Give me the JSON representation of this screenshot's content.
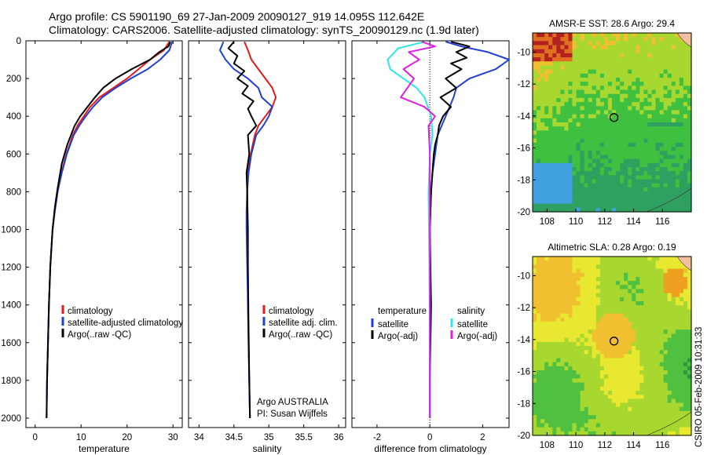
{
  "header": {
    "title": "Argo profile: CS 5901190_69 27-Jan-2009 20090127_919 14.095S 112.642E",
    "subtitle": "Climatology: CARS2006. Satellite-adjusted climatology: synTS_20090129.nc (1.9d later)"
  },
  "colors": {
    "red": "#e41a1c",
    "blue": "#1f3fd6",
    "black": "#000000",
    "cyan": "#2ee6e6",
    "magenta": "#e020e0"
  },
  "depth_axis": {
    "ylim": [
      0,
      2050
    ],
    "ticks": [
      "0",
      "200",
      "400",
      "600",
      "800",
      "1000",
      "1200",
      "1400",
      "1600",
      "1800",
      "2000"
    ]
  },
  "chart_data": [
    {
      "type": "line",
      "xlabel": "temperature",
      "xlim": [
        -2,
        32
      ],
      "xticks": [
        "0",
        "10",
        "20",
        "30"
      ],
      "legend": {
        "placement": "lower-center",
        "items": [
          "climatology",
          "satellite-adjusted climatology",
          "Argo(..raw -QC)"
        ]
      },
      "series": [
        {
          "name": "climatology",
          "color": "red",
          "x": [
            29.2,
            28.0,
            25.0,
            22.5,
            20.0,
            17.0,
            14.0,
            12.0,
            10.6,
            9.2,
            8.2,
            6.8,
            5.7,
            4.9,
            4.3,
            3.8,
            3.3,
            3.0,
            2.8,
            2.6,
            2.5
          ],
          "y": [
            5,
            50,
            100,
            150,
            200,
            250,
            300,
            350,
            400,
            450,
            500,
            600,
            700,
            800,
            900,
            1000,
            1200,
            1400,
            1600,
            1800,
            2000
          ]
        },
        {
          "name": "satellite-adjusted climatology",
          "color": "blue",
          "x": [
            29.8,
            29.2,
            27.2,
            24.5,
            20.8,
            17.5,
            14.6,
            12.6,
            11.0,
            9.6,
            8.4,
            6.9,
            5.8,
            4.9,
            4.3,
            3.8,
            3.3,
            3.0,
            2.8,
            2.6,
            2.5
          ],
          "y": [
            5,
            50,
            100,
            150,
            200,
            250,
            300,
            350,
            400,
            450,
            500,
            600,
            700,
            800,
            900,
            1000,
            1200,
            1400,
            1600,
            1800,
            2000
          ]
        },
        {
          "name": "Argo(..raw -QC)",
          "color": "black",
          "x": [
            29.4,
            29.0,
            27.0,
            25.0,
            21.0,
            17.5,
            14.8,
            13.0,
            11.4,
            9.8,
            8.6,
            7.0,
            5.8,
            4.9,
            4.3,
            3.8,
            3.3,
            3.0,
            2.8,
            2.6,
            2.5
          ],
          "y": [
            5,
            30,
            60,
            100,
            150,
            200,
            250,
            300,
            350,
            400,
            450,
            550,
            650,
            780,
            880,
            1000,
            1200,
            1400,
            1600,
            1800,
            2000
          ]
        }
      ]
    },
    {
      "type": "line",
      "xlabel": "salinity",
      "xlim": [
        33.85,
        36.1
      ],
      "xticks": [
        "34",
        "34.5",
        "35",
        "35.5",
        "36"
      ],
      "legend": {
        "placement": "lower-center",
        "items": [
          "climatology",
          "satellite adj. clim.",
          "Argo(..raw -QC)"
        ]
      },
      "annotations": [
        "Argo AUSTRALIA",
        "PI: Susan Wijffels"
      ],
      "series": [
        {
          "name": "climatology",
          "color": "red",
          "x": [
            34.65,
            34.7,
            34.75,
            34.85,
            34.95,
            35.05,
            35.1,
            35.05,
            34.95,
            34.85,
            34.8,
            34.74,
            34.7,
            34.69,
            34.69,
            34.69,
            34.7,
            34.7,
            34.71,
            34.72,
            34.73
          ],
          "y": [
            5,
            50,
            100,
            150,
            200,
            250,
            300,
            350,
            400,
            450,
            500,
            600,
            700,
            800,
            900,
            1000,
            1200,
            1400,
            1600,
            1800,
            2000
          ]
        },
        {
          "name": "satellite adj. clim.",
          "color": "blue",
          "x": [
            34.35,
            34.3,
            34.38,
            34.5,
            34.7,
            34.85,
            34.9,
            35.05,
            35.0,
            34.92,
            34.82,
            34.75,
            34.71,
            34.69,
            34.68,
            34.68,
            34.69,
            34.7,
            34.71,
            34.72,
            34.73
          ],
          "y": [
            5,
            50,
            100,
            150,
            200,
            250,
            300,
            350,
            400,
            450,
            500,
            600,
            700,
            800,
            900,
            1000,
            1200,
            1400,
            1600,
            1800,
            2000
          ]
        },
        {
          "name": "Argo(..raw -QC)",
          "color": "black",
          "x": [
            34.5,
            34.42,
            34.55,
            34.5,
            34.65,
            34.55,
            34.7,
            34.62,
            34.78,
            34.7,
            34.75,
            34.82,
            34.7,
            34.72,
            34.68,
            34.69,
            34.7,
            34.7,
            34.71,
            34.72,
            34.73
          ],
          "y": [
            5,
            40,
            80,
            120,
            160,
            200,
            240,
            280,
            320,
            360,
            400,
            450,
            500,
            600,
            700,
            800,
            1000,
            1200,
            1500,
            1800,
            2000
          ]
        }
      ]
    },
    {
      "type": "line",
      "xlabel": "difference from climatology",
      "xlim": [
        -2.95,
        3.0
      ],
      "xticks": [
        "-2",
        "0",
        "2"
      ],
      "legend": {
        "placement": "lower-center",
        "items": [
          "temperature",
          "salinity",
          "satellite",
          "satellite",
          "Argo(-adj)",
          "Argo(-adj)"
        ]
      },
      "series": [
        {
          "name": "satellite",
          "group": "temperature",
          "color": "blue",
          "x": [
            0.6,
            1.2,
            2.2,
            3.0,
            2.5,
            1.5,
            1.0,
            0.9,
            0.6,
            0.3,
            0.2,
            0.1,
            0.05,
            0.0,
            0.0,
            0.0,
            0.0,
            0.0,
            0.0
          ],
          "y": [
            5,
            30,
            60,
            100,
            150,
            200,
            250,
            300,
            400,
            500,
            600,
            700,
            800,
            1000,
            1200,
            1400,
            1600,
            1800,
            2000
          ]
        },
        {
          "name": "Argo(-adj)",
          "group": "temperature",
          "color": "black",
          "x": [
            0.8,
            1.5,
            1.0,
            1.4,
            0.8,
            1.2,
            0.6,
            1.0,
            0.4,
            0.8,
            0.5,
            0.35,
            0.3,
            0.2,
            0.15,
            0.1,
            0.05,
            0.0,
            0.05,
            0.0,
            0.0
          ],
          "y": [
            5,
            30,
            60,
            90,
            120,
            150,
            200,
            250,
            300,
            350,
            400,
            450,
            500,
            550,
            600,
            700,
            800,
            1000,
            1400,
            1800,
            2000
          ]
        },
        {
          "name": "satellite",
          "group": "salinity",
          "color": "cyan",
          "x": [
            -0.2,
            -1.2,
            -1.6,
            -1.5,
            -1.0,
            -0.5,
            -0.2,
            0.05,
            0.1,
            0.0,
            -0.05,
            -0.02,
            0.0,
            0.0
          ],
          "y": [
            5,
            40,
            100,
            150,
            200,
            250,
            300,
            400,
            500,
            600,
            800,
            1200,
            1600,
            2000
          ]
        },
        {
          "name": "Argo(-adj)",
          "group": "salinity",
          "color": "magenta",
          "x": [
            -0.3,
            0.2,
            -0.8,
            -0.4,
            -1.0,
            -0.6,
            -1.1,
            -0.2,
            0.2,
            -0.05,
            0.0,
            0.0,
            0.0,
            0.0
          ],
          "y": [
            5,
            30,
            60,
            100,
            150,
            200,
            300,
            350,
            400,
            450,
            600,
            1000,
            1500,
            2000
          ]
        }
      ]
    },
    {
      "type": "heatmap",
      "title": "AMSR-E SST: 28.6 Argo: 29.4",
      "x_ticks": [
        "108",
        "110",
        "112",
        "114",
        "116"
      ],
      "y_ticks": [
        "-10",
        "-12",
        "-14",
        "-16",
        "-18",
        "-20"
      ],
      "xlim": [
        107,
        118
      ],
      "ylim": [
        -20,
        -8.8
      ],
      "marker": {
        "lon": 112.642,
        "lat": -14.095
      },
      "palette": [
        "#b22222",
        "#e07020",
        "#f0c030",
        "#a8d830",
        "#40c040",
        "#30a060",
        "#40a0e0"
      ]
    },
    {
      "type": "heatmap",
      "title": "Altimetric SLA: 0.28 Argo: 0.19",
      "x_ticks": [
        "108",
        "110",
        "112",
        "114",
        "116"
      ],
      "y_ticks": [
        "-10",
        "-12",
        "-14",
        "-16",
        "-18",
        "-20"
      ],
      "xlim": [
        107,
        118
      ],
      "ylim": [
        -20,
        -8.8
      ],
      "marker": {
        "lon": 112.642,
        "lat": -14.095
      },
      "palette": [
        "#2a9a3a",
        "#50c040",
        "#a8d830",
        "#e8e830",
        "#f0c030",
        "#f0a020"
      ]
    }
  ],
  "footer": {
    "stamp": "CSIRO 05-Feb-2009 10:31:33"
  }
}
